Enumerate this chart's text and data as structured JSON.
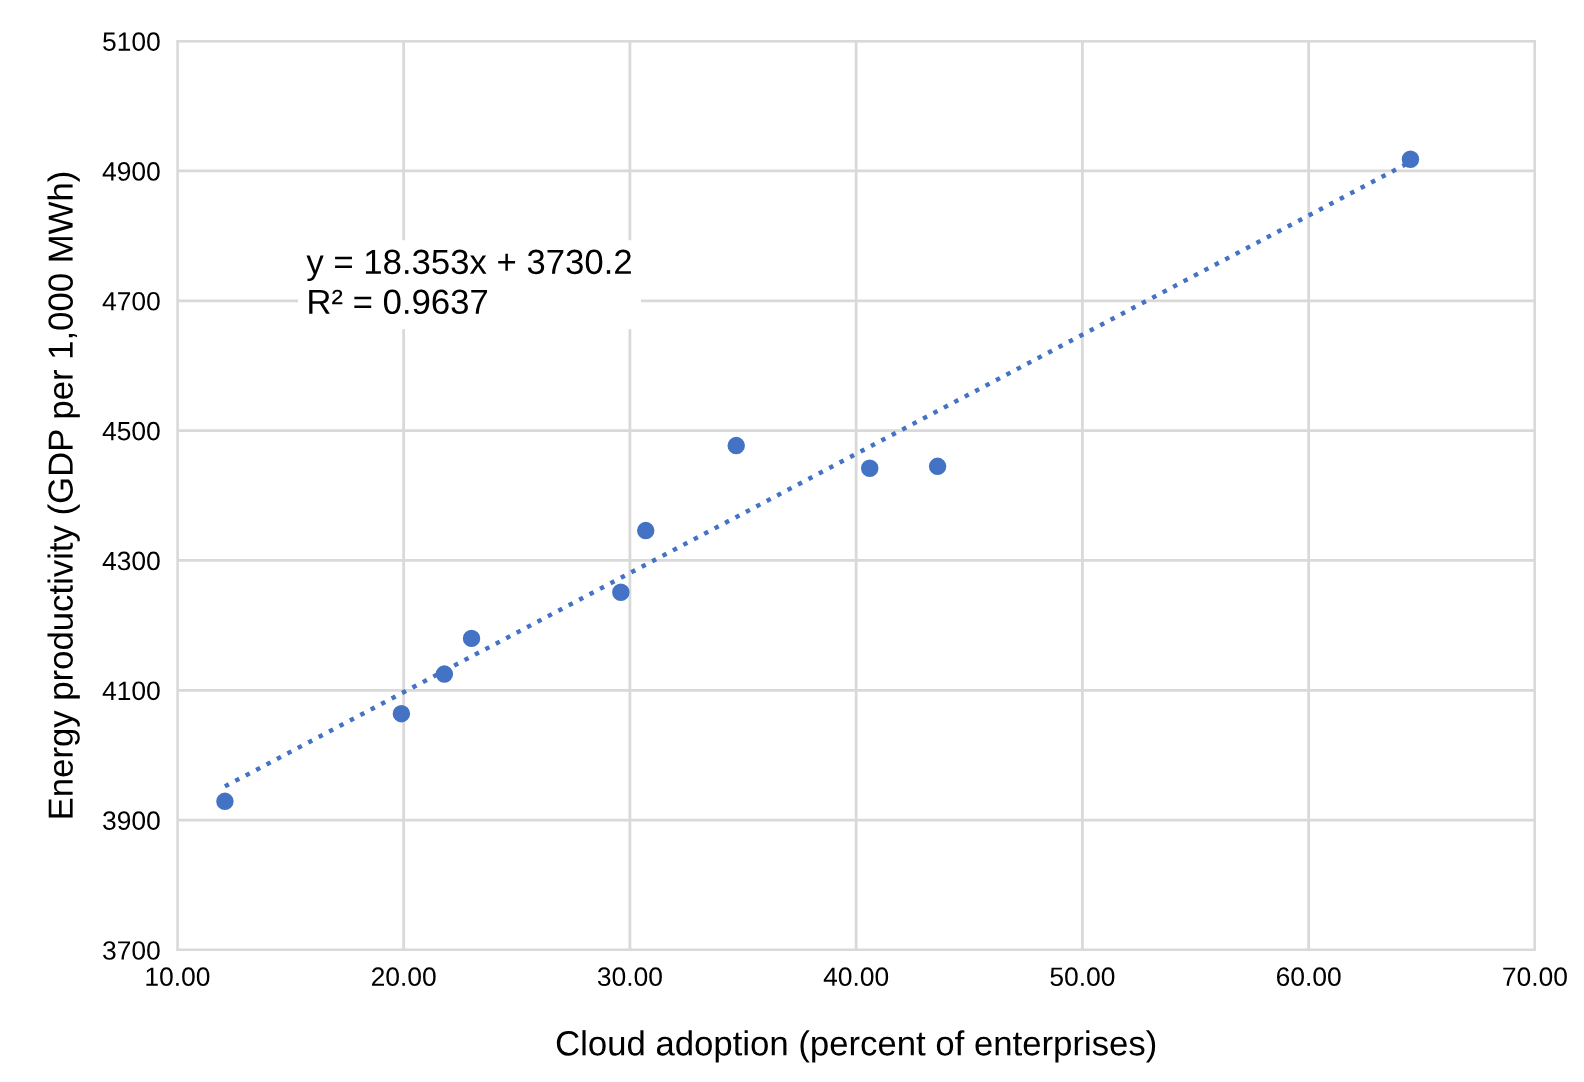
{
  "chart_data": {
    "type": "scatter",
    "xlabel": "Cloud adoption (percent of enterprises)",
    "ylabel": "Energy productivity (GDP per 1,000 MWh)",
    "series": [
      {
        "type": "scatter",
        "color": "#4472c4",
        "marker": "circle",
        "x": [
          12.1,
          19.9,
          21.8,
          23.0,
          29.6,
          30.7,
          34.7,
          40.6,
          43.6,
          64.5
        ],
        "values": [
          3929,
          4064,
          4125,
          4180,
          4251,
          4346,
          4477,
          4442,
          4445,
          4918
        ]
      },
      {
        "type": "line",
        "color": "#4472c4",
        "line_style": "dotted",
        "marker": "none",
        "x": [
          12.1,
          64.5
        ],
        "values": [
          3952,
          4914
        ]
      }
    ],
    "annotations": [
      "y = 18.353x + 3730.2\nR² = 0.9637"
    ],
    "xlim": [
      10,
      70
    ],
    "xticks": [
      {
        "value": 10,
        "label": "10.00"
      },
      {
        "value": 20,
        "label": "20.00"
      },
      {
        "value": 30,
        "label": "30.00"
      },
      {
        "value": 40,
        "label": "40.00"
      },
      {
        "value": 50,
        "label": "50.00"
      },
      {
        "value": 60,
        "label": "60.00"
      },
      {
        "value": 70,
        "label": "70.00"
      }
    ],
    "ylim": [
      3700,
      5100
    ],
    "yticks": [
      3700,
      3900,
      4100,
      4300,
      4500,
      4700,
      4900,
      5100
    ],
    "grid": true,
    "legend": false
  }
}
